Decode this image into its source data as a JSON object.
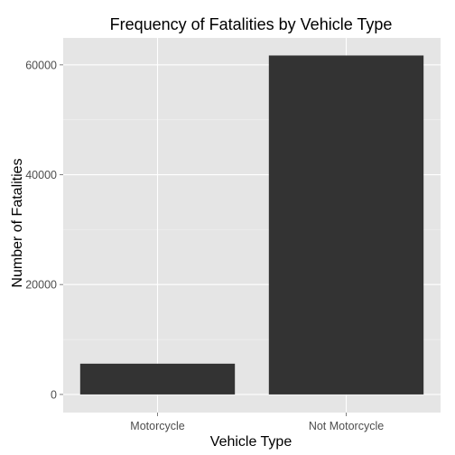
{
  "chart_data": {
    "type": "bar",
    "title": "Frequency of Fatalities by Vehicle Type",
    "xlabel": "Vehicle Type",
    "ylabel": "Number of Fatalities",
    "categories": [
      "Motorcycle",
      "Not Motorcycle"
    ],
    "values": [
      5600,
      61700
    ],
    "ylim": [
      -3300,
      64900
    ],
    "yticks": [
      0,
      20000,
      40000,
      60000
    ],
    "ytick_labels": [
      "0",
      "20000",
      "40000",
      "60000"
    ],
    "grid": true,
    "legend": "none",
    "colors": {
      "bar": "#333333",
      "panel_background": "#e5e5e5",
      "grid_major": "#ffffff",
      "grid_minor": "#f2f2f2",
      "tick_text": "#4d4d4d"
    }
  }
}
